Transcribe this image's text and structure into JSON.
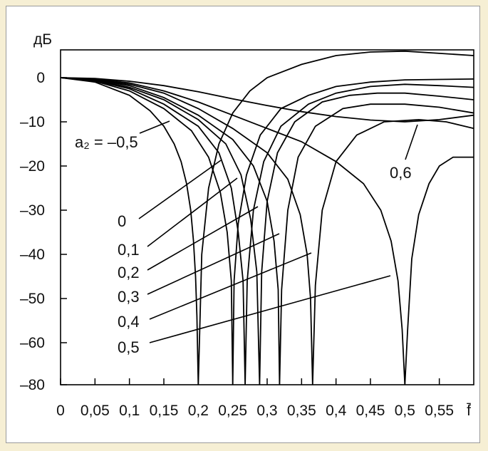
{
  "chart_data": {
    "type": "line",
    "ylabel": "дБ",
    "xlabel": "f̄",
    "xlim": [
      0,
      0.6
    ],
    "ylim": [
      -80,
      6
    ],
    "xticks": [
      {
        "value": 0,
        "label": "0"
      },
      {
        "value": 0.05,
        "label": "0,05"
      },
      {
        "value": 0.1,
        "label": "0,1"
      },
      {
        "value": 0.15,
        "label": "0,15"
      },
      {
        "value": 0.2,
        "label": "0,2"
      },
      {
        "value": 0.25,
        "label": "0,25"
      },
      {
        "value": 0.3,
        "label": "0,3"
      },
      {
        "value": 0.35,
        "label": "0,35"
      },
      {
        "value": 0.4,
        "label": "0,4"
      },
      {
        "value": 0.45,
        "label": "0,45"
      },
      {
        "value": 0.5,
        "label": "0,5"
      },
      {
        "value": 0.55,
        "label": "0,55"
      }
    ],
    "yticks": [
      {
        "value": 0,
        "label": "0"
      },
      {
        "value": -10,
        "label": "–10"
      },
      {
        "value": -20,
        "label": "–20"
      },
      {
        "value": -30,
        "label": "–30"
      },
      {
        "value": -40,
        "label": "–40"
      },
      {
        "value": -50,
        "label": "–50"
      },
      {
        "value": -60,
        "label": "–60"
      },
      {
        "value": -80,
        "label": "–80"
      }
    ],
    "grid": false,
    "series": [
      {
        "name": "a₂ = –0,5",
        "x": [
          0,
          0.05,
          0.1,
          0.13,
          0.15,
          0.165,
          0.175,
          0.183,
          0.189,
          0.193,
          0.196,
          0.198,
          0.2,
          0.205,
          0.215,
          0.23,
          0.25,
          0.275,
          0.3,
          0.35,
          0.4,
          0.45,
          0.5,
          0.55,
          0.6
        ],
        "y": [
          0,
          -1,
          -4,
          -7.5,
          -11,
          -15,
          -19,
          -24,
          -30,
          -37,
          -45,
          -54,
          -80,
          -40,
          -25,
          -15,
          -8,
          -3,
          0,
          3,
          5,
          5.8,
          6,
          5.5,
          5
        ]
      },
      {
        "name": "0",
        "x": [
          0,
          0.05,
          0.1,
          0.15,
          0.19,
          0.215,
          0.232,
          0.242,
          0.248,
          0.25,
          0.252,
          0.258,
          0.27,
          0.29,
          0.32,
          0.36,
          0.4,
          0.45,
          0.5,
          0.55,
          0.6
        ],
        "y": [
          0,
          -0.8,
          -3,
          -7,
          -12,
          -18,
          -26,
          -35,
          -46,
          -80,
          -46,
          -33,
          -22,
          -13,
          -7,
          -4,
          -2,
          -1,
          -0.5,
          -0.4,
          -0.3
        ]
      },
      {
        "name": "0,1",
        "x": [
          0,
          0.05,
          0.1,
          0.15,
          0.2,
          0.23,
          0.248,
          0.258,
          0.265,
          0.268,
          0.271,
          0.28,
          0.295,
          0.32,
          0.36,
          0.4,
          0.45,
          0.5,
          0.55,
          0.6
        ],
        "y": [
          0,
          -0.7,
          -2.5,
          -6,
          -11,
          -17,
          -25,
          -35,
          -46,
          -80,
          -46,
          -30,
          -19,
          -11,
          -6,
          -3.5,
          -2,
          -1.5,
          -1.8,
          -2.2
        ]
      },
      {
        "name": "0,2",
        "x": [
          0,
          0.05,
          0.1,
          0.15,
          0.2,
          0.24,
          0.262,
          0.276,
          0.285,
          0.289,
          0.292,
          0.3,
          0.315,
          0.34,
          0.38,
          0.42,
          0.46,
          0.5,
          0.55,
          0.6
        ],
        "y": [
          0,
          -0.6,
          -2.2,
          -5,
          -9.5,
          -15,
          -22,
          -32,
          -44,
          -80,
          -44,
          -28,
          -17,
          -10,
          -5.5,
          -4,
          -3.5,
          -3.5,
          -4.2,
          -5
        ]
      },
      {
        "name": "0,3",
        "x": [
          0,
          0.05,
          0.1,
          0.15,
          0.2,
          0.25,
          0.28,
          0.3,
          0.31,
          0.316,
          0.318,
          0.321,
          0.33,
          0.345,
          0.37,
          0.41,
          0.45,
          0.5,
          0.55,
          0.6
        ],
        "y": [
          0,
          -0.5,
          -1.8,
          -4.5,
          -8.5,
          -14,
          -20,
          -28,
          -37,
          -48,
          -80,
          -48,
          -30,
          -18,
          -11,
          -7,
          -6,
          -6,
          -6.7,
          -8
        ]
      },
      {
        "name": "0,4",
        "x": [
          0,
          0.05,
          0.1,
          0.15,
          0.2,
          0.25,
          0.3,
          0.33,
          0.348,
          0.358,
          0.363,
          0.366,
          0.37,
          0.38,
          0.4,
          0.43,
          0.47,
          0.52,
          0.56,
          0.6
        ],
        "y": [
          0,
          -0.4,
          -1.5,
          -3.5,
          -7,
          -11.5,
          -17,
          -23,
          -31,
          -40,
          -50,
          -80,
          -47,
          -30,
          -19,
          -13,
          -10,
          -9.5,
          -10,
          -11.5
        ]
      },
      {
        "name": "0,5",
        "x": [
          0,
          0.05,
          0.1,
          0.15,
          0.2,
          0.25,
          0.3,
          0.35,
          0.4,
          0.44,
          0.465,
          0.48,
          0.49,
          0.496,
          0.5,
          0.504,
          0.51,
          0.52,
          0.535,
          0.55,
          0.57,
          0.6
        ],
        "y": [
          0,
          -0.3,
          -1.2,
          -3,
          -5.5,
          -8.5,
          -11.5,
          -14.5,
          -19,
          -24,
          -30,
          -37,
          -46,
          -57,
          -80,
          -57,
          -41,
          -31,
          -24,
          -20,
          -18,
          -18
        ]
      },
      {
        "name": "0,6",
        "x": [
          0,
          0.05,
          0.1,
          0.15,
          0.2,
          0.25,
          0.3,
          0.35,
          0.4,
          0.45,
          0.5,
          0.55,
          0.6
        ],
        "y": [
          0,
          -0.2,
          -0.8,
          -1.8,
          -3.2,
          -4.8,
          -6.3,
          -7.7,
          -8.8,
          -9.6,
          -10,
          -9.5,
          -8.5
        ]
      }
    ],
    "annotations": [
      {
        "label": "a₂ = –0,5",
        "series": 0
      },
      {
        "label": "0",
        "series": 1
      },
      {
        "label": "0,1",
        "series": 2
      },
      {
        "label": "0,2",
        "series": 3
      },
      {
        "label": "0,3",
        "series": 4
      },
      {
        "label": "0,4",
        "series": 5
      },
      {
        "label": "0,5",
        "series": 6
      },
      {
        "label": "0,6",
        "series": 7
      }
    ]
  }
}
